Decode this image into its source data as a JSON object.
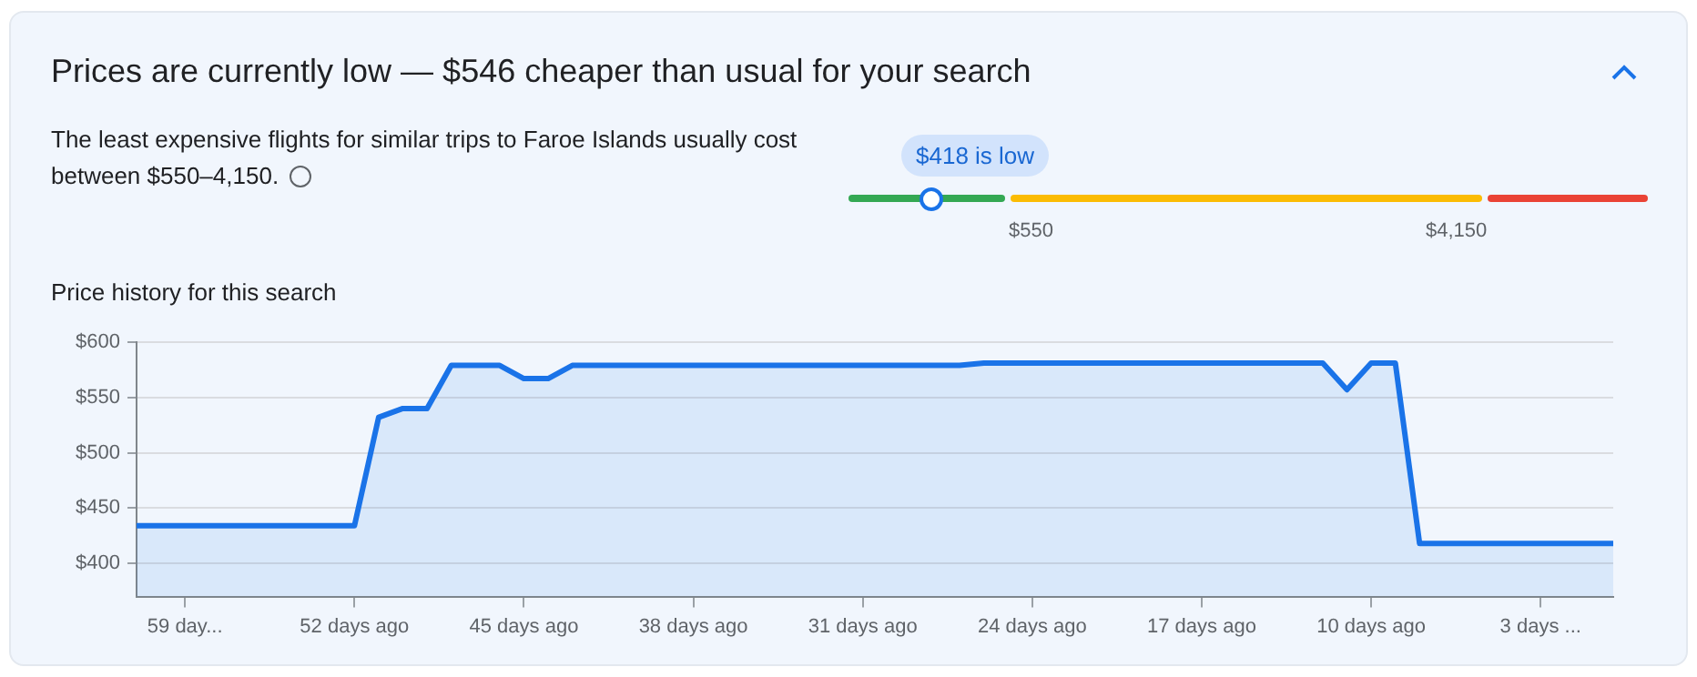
{
  "chart_data": {
    "type": "area",
    "title": "Prices are currently low — $546 cheaper than usual for your search",
    "subtitle": "The least expensive flights for similar trips to Faroe Islands usually cost between $550–4,150.",
    "annotations": [
      "$418 is low",
      "$550",
      "$4,150",
      "Price history for this search"
    ],
    "series": [
      {
        "color": "#1a73e8",
        "x": [
          61,
          52,
          51,
          50,
          49,
          48,
          46,
          45,
          44,
          43,
          27,
          26,
          12,
          11,
          10,
          9,
          8,
          0
        ],
        "values": [
          434,
          434,
          532,
          540,
          540,
          579,
          579,
          567,
          567,
          579,
          579,
          581,
          581,
          557,
          581,
          581,
          418,
          418
        ]
      }
    ],
    "xlim": [
      61,
      0
    ],
    "xticks": [
      {
        "value": 59,
        "label": "59 day..."
      },
      {
        "value": 52,
        "label": "52 days ago"
      },
      {
        "value": 45,
        "label": "45 days ago"
      },
      {
        "value": 38,
        "label": "38 days ago"
      },
      {
        "value": 31,
        "label": "31 days ago"
      },
      {
        "value": 24,
        "label": "24 days ago"
      },
      {
        "value": 17,
        "label": "17 days ago"
      },
      {
        "value": 10,
        "label": "10 days ago"
      },
      {
        "value": 3,
        "label": "3 days ..."
      }
    ],
    "ylim": [
      370,
      600
    ],
    "yticks": [
      {
        "value": 400,
        "label": "$400"
      },
      {
        "value": 450,
        "label": "$450"
      },
      {
        "value": 500,
        "label": "$500"
      },
      {
        "value": 550,
        "label": "$550"
      },
      {
        "value": 600,
        "label": "$600"
      }
    ],
    "grid": "y",
    "legend": false,
    "marker": "none",
    "line_style": "solid"
  }
}
